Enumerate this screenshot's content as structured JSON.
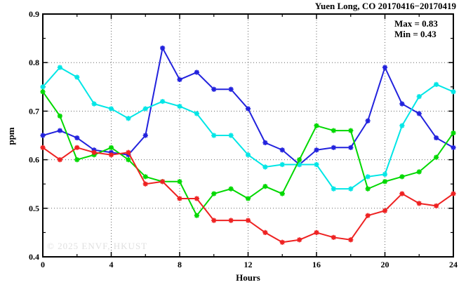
{
  "title": "Yuen Long, CO 20170416−20170419",
  "legend": {
    "max_label": "Max = 0.83",
    "min_label": "Min = 0.43"
  },
  "watermark": "© 2025 ENVF, HKUST",
  "chart_data": {
    "type": "line",
    "title": "Yuen Long, CO 20170416−20170419",
    "xlabel": "Hours",
    "ylabel": "ppm",
    "xlim": [
      0,
      24
    ],
    "ylim": [
      0.4,
      0.9
    ],
    "x_major_ticks": [
      0,
      4,
      8,
      12,
      16,
      20,
      24
    ],
    "x_minor_ticks": [
      2,
      6,
      10,
      14,
      18,
      22
    ],
    "y_major_ticks": [
      0.4,
      0.5,
      0.6,
      0.7,
      0.8,
      0.9
    ],
    "y_minor_ticks": [
      0.45,
      0.55,
      0.65,
      0.75,
      0.85
    ],
    "grid": "dotted-at-major",
    "legend_position": "top-right-inside",
    "annotations": [
      "Max = 0.83",
      "Min = 0.43"
    ],
    "max_value": 0.83,
    "min_value": 0.43,
    "marker": "star",
    "x": [
      0,
      1,
      2,
      3,
      4,
      5,
      6,
      7,
      8,
      9,
      10,
      11,
      12,
      13,
      14,
      15,
      16,
      17,
      18,
      19,
      20,
      21,
      22,
      23,
      24
    ],
    "series": [
      {
        "name": "series-blue",
        "color": "#2222dd",
        "values": [
          0.65,
          0.66,
          0.645,
          0.62,
          0.615,
          0.61,
          0.65,
          0.83,
          0.765,
          0.78,
          0.745,
          0.745,
          0.705,
          0.635,
          0.62,
          0.59,
          0.62,
          0.625,
          0.625,
          0.68,
          0.79,
          0.715,
          0.695,
          0.645,
          0.625
        ]
      },
      {
        "name": "series-cyan",
        "color": "#00e6e6",
        "values": [
          0.75,
          0.79,
          0.77,
          0.715,
          0.705,
          0.685,
          0.705,
          0.72,
          0.71,
          0.695,
          0.65,
          0.65,
          0.61,
          0.585,
          0.59,
          0.59,
          0.59,
          0.54,
          0.54,
          0.565,
          0.57,
          0.67,
          0.73,
          0.755,
          0.74
        ]
      },
      {
        "name": "series-green",
        "color": "#00d800",
        "values": [
          0.74,
          0.69,
          0.6,
          0.61,
          0.625,
          0.6,
          0.565,
          0.555,
          0.555,
          0.485,
          0.53,
          0.54,
          0.52,
          0.545,
          0.53,
          0.6,
          0.67,
          0.66,
          0.66,
          0.54,
          0.555,
          0.565,
          0.575,
          0.605,
          0.655
        ]
      },
      {
        "name": "series-red",
        "color": "#ee2222",
        "values": [
          0.625,
          0.6,
          0.625,
          0.615,
          0.61,
          0.615,
          0.55,
          0.555,
          0.52,
          0.52,
          0.475,
          0.475,
          0.475,
          0.45,
          0.43,
          0.435,
          0.45,
          0.44,
          0.435,
          0.485,
          0.495,
          0.53,
          0.51,
          0.505,
          0.53
        ]
      }
    ]
  }
}
